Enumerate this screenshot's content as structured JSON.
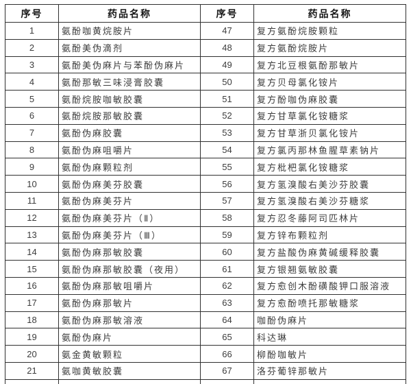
{
  "colors": {
    "border": "#2f2f2f",
    "text": "#3c3c3c",
    "header_text": "#161616",
    "background": "#ffffff"
  },
  "table": {
    "headers": [
      "序号",
      "药品名称",
      "序号",
      "药品名称"
    ],
    "rows": [
      {
        "left_no": "1",
        "left_name": "氨酚咖黄烷胺片",
        "right_no": "47",
        "right_name": "复方氨酚烷胺颗粒"
      },
      {
        "left_no": "2",
        "left_name": "氨酚美伪滴剂",
        "right_no": "48",
        "right_name": "复方氨酚烷胺片"
      },
      {
        "left_no": "3",
        "left_name": "氨酚美伪麻片与苯酚伪麻片",
        "right_no": "49",
        "right_name": "复方北豆根氨酚那敏片"
      },
      {
        "left_no": "4",
        "left_name": "氨酚那敏三味浸膏胶囊",
        "right_no": "50",
        "right_name": "复方贝母氯化铵片"
      },
      {
        "left_no": "5",
        "left_name": "氨酚烷胺咖敏胶囊",
        "right_no": "51",
        "right_name": "复方酚咖伪麻胶囊"
      },
      {
        "left_no": "6",
        "left_name": "氨酚烷胺那敏胶囊",
        "right_no": "52",
        "right_name": "复方甘草氯化铵糖浆"
      },
      {
        "left_no": "7",
        "left_name": "氨酚伪麻胶囊",
        "right_no": "53",
        "right_name": "复方甘草浙贝氯化铵片"
      },
      {
        "left_no": "8",
        "left_name": "氨酚伪麻咀嚼片",
        "right_no": "54",
        "right_name": "复方氯丙那林鱼腥草素钠片"
      },
      {
        "left_no": "9",
        "left_name": "氨酚伪麻颗粒剂",
        "right_no": "55",
        "right_name": "复方枇杷氯化铵糖浆"
      },
      {
        "left_no": "10",
        "left_name": "氨酚伪麻美芬胶囊",
        "right_no": "56",
        "right_name": "复方氢溴酸右美沙芬胶囊"
      },
      {
        "left_no": "11",
        "left_name": "氨酚伪麻美芬片",
        "right_no": "57",
        "right_name": "复方氢溴酸右美沙芬糖浆"
      },
      {
        "left_no": "12",
        "left_name": "氨酚伪麻美芬片（Ⅱ）",
        "right_no": "58",
        "right_name": "复方忍冬藤阿司匹林片"
      },
      {
        "left_no": "13",
        "left_name": "氨酚伪麻美芬片（Ⅲ）",
        "right_no": "59",
        "right_name": "复方锌布颗粒剂"
      },
      {
        "left_no": "14",
        "left_name": "氨酚伪麻那敏胶囊",
        "right_no": "60",
        "right_name": "复方盐酸伪麻黄碱缓释胶囊"
      },
      {
        "left_no": "15",
        "left_name": "氨酚伪麻那敏胶囊（夜用）",
        "right_no": "61",
        "right_name": "复方银翘氨敏胶囊"
      },
      {
        "left_no": "16",
        "left_name": "氨酚伪麻那敏咀嚼片",
        "right_no": "62",
        "right_name": "复方愈创木酚磺酸钾口服溶液"
      },
      {
        "left_no": "17",
        "left_name": "氨酚伪麻那敏片",
        "right_no": "63",
        "right_name": "复方愈酚喷托那敏糖浆"
      },
      {
        "left_no": "18",
        "left_name": "氨酚伪麻那敏溶液",
        "right_no": "64",
        "right_name": "咖酚伪麻片"
      },
      {
        "left_no": "19",
        "left_name": "氨酚伪麻片",
        "right_no": "65",
        "right_name": "科达琳"
      },
      {
        "left_no": "20",
        "left_name": "氨金黄敏颗粒",
        "right_no": "66",
        "right_name": "柳酚咖敏片"
      },
      {
        "left_no": "21",
        "left_name": "氨咖黄敏胶囊",
        "right_no": "67",
        "right_name": "洛芬葡锌那敏片"
      }
    ]
  }
}
